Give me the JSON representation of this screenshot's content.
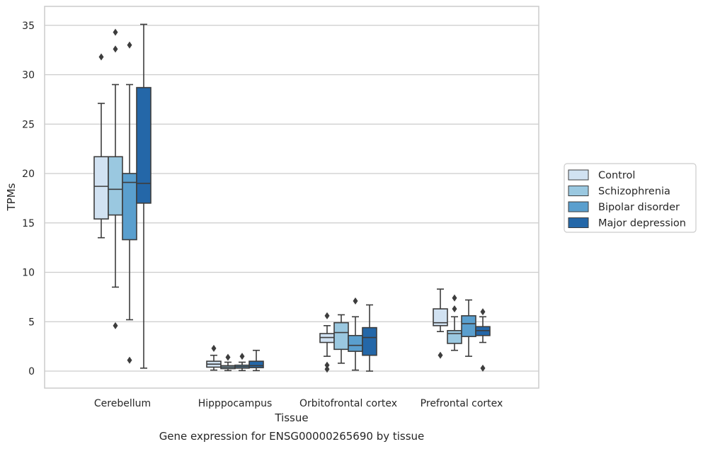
{
  "chart_data": {
    "type": "box",
    "title": "",
    "caption": "Gene expression for ENSG00000265690 by tissue",
    "xlabel": "Tissue",
    "ylabel": "TPMs",
    "ylim": [
      -1.7,
      36.9
    ],
    "yticks": [
      0,
      5,
      10,
      15,
      20,
      25,
      30,
      35
    ],
    "grid": "horizontal",
    "legend_position": "right",
    "categories": [
      "Cerebellum",
      "Hipppocampus",
      "Orbitofrontal cortex",
      "Prefrontal cortex"
    ],
    "series": [
      {
        "name": "Control",
        "color": "#d1e2f2",
        "boxes": [
          {
            "whisker_low": 13.5,
            "q1": 15.4,
            "median": 18.7,
            "q3": 21.7,
            "whisker_high": 27.1,
            "outliers": [
              31.8
            ]
          },
          {
            "whisker_low": 0.1,
            "q1": 0.4,
            "median": 0.7,
            "q3": 1.0,
            "whisker_high": 1.6,
            "outliers": [
              2.3
            ]
          },
          {
            "whisker_low": 1.5,
            "q1": 2.9,
            "median": 3.4,
            "q3": 3.8,
            "whisker_high": 4.6,
            "outliers": [
              5.6,
              0.6,
              0.2
            ]
          },
          {
            "whisker_low": 4.0,
            "q1": 4.6,
            "median": 4.9,
            "q3": 6.3,
            "whisker_high": 8.3,
            "outliers": [
              1.6
            ]
          }
        ]
      },
      {
        "name": "Schizophrenia",
        "color": "#9ac8e0",
        "boxes": [
          {
            "whisker_low": 8.5,
            "q1": 15.8,
            "median": 18.4,
            "q3": 21.7,
            "whisker_high": 29.0,
            "outliers": [
              34.3,
              32.6,
              4.6
            ]
          },
          {
            "whisker_low": 0.05,
            "q1": 0.25,
            "median": 0.4,
            "q3": 0.55,
            "whisker_high": 0.9,
            "outliers": [
              1.4
            ]
          },
          {
            "whisker_low": 0.8,
            "q1": 2.2,
            "median": 3.9,
            "q3": 4.9,
            "whisker_high": 5.7,
            "outliers": []
          },
          {
            "whisker_low": 2.1,
            "q1": 2.8,
            "median": 3.8,
            "q3": 4.1,
            "whisker_high": 5.5,
            "outliers": [
              7.4,
              6.3
            ]
          }
        ]
      },
      {
        "name": "Bipolar disorder",
        "color": "#5a9fce",
        "boxes": [
          {
            "whisker_low": 5.2,
            "q1": 13.3,
            "median": 19.1,
            "q3": 20.0,
            "whisker_high": 29.0,
            "outliers": [
              33.0,
              1.1
            ]
          },
          {
            "whisker_low": 0.05,
            "q1": 0.3,
            "median": 0.45,
            "q3": 0.6,
            "whisker_high": 0.9,
            "outliers": [
              1.5
            ]
          },
          {
            "whisker_low": 0.1,
            "q1": 2.0,
            "median": 2.6,
            "q3": 3.6,
            "whisker_high": 5.5,
            "outliers": [
              7.1
            ]
          },
          {
            "whisker_low": 1.5,
            "q1": 3.5,
            "median": 4.8,
            "q3": 5.6,
            "whisker_high": 7.2,
            "outliers": []
          }
        ]
      },
      {
        "name": "Major depression",
        "color": "#2467a8",
        "boxes": [
          {
            "whisker_low": 0.3,
            "q1": 17.0,
            "median": 19.0,
            "q3": 28.7,
            "whisker_high": 35.1,
            "outliers": []
          },
          {
            "whisker_low": 0.05,
            "q1": 0.35,
            "median": 0.55,
            "q3": 1.0,
            "whisker_high": 2.1,
            "outliers": []
          },
          {
            "whisker_low": 0.0,
            "q1": 1.6,
            "median": 3.4,
            "q3": 4.4,
            "whisker_high": 6.7,
            "outliers": []
          },
          {
            "whisker_low": 2.9,
            "q1": 3.6,
            "median": 4.1,
            "q3": 4.5,
            "whisker_high": 5.5,
            "outliers": [
              6.0,
              0.3
            ]
          }
        ]
      }
    ]
  }
}
